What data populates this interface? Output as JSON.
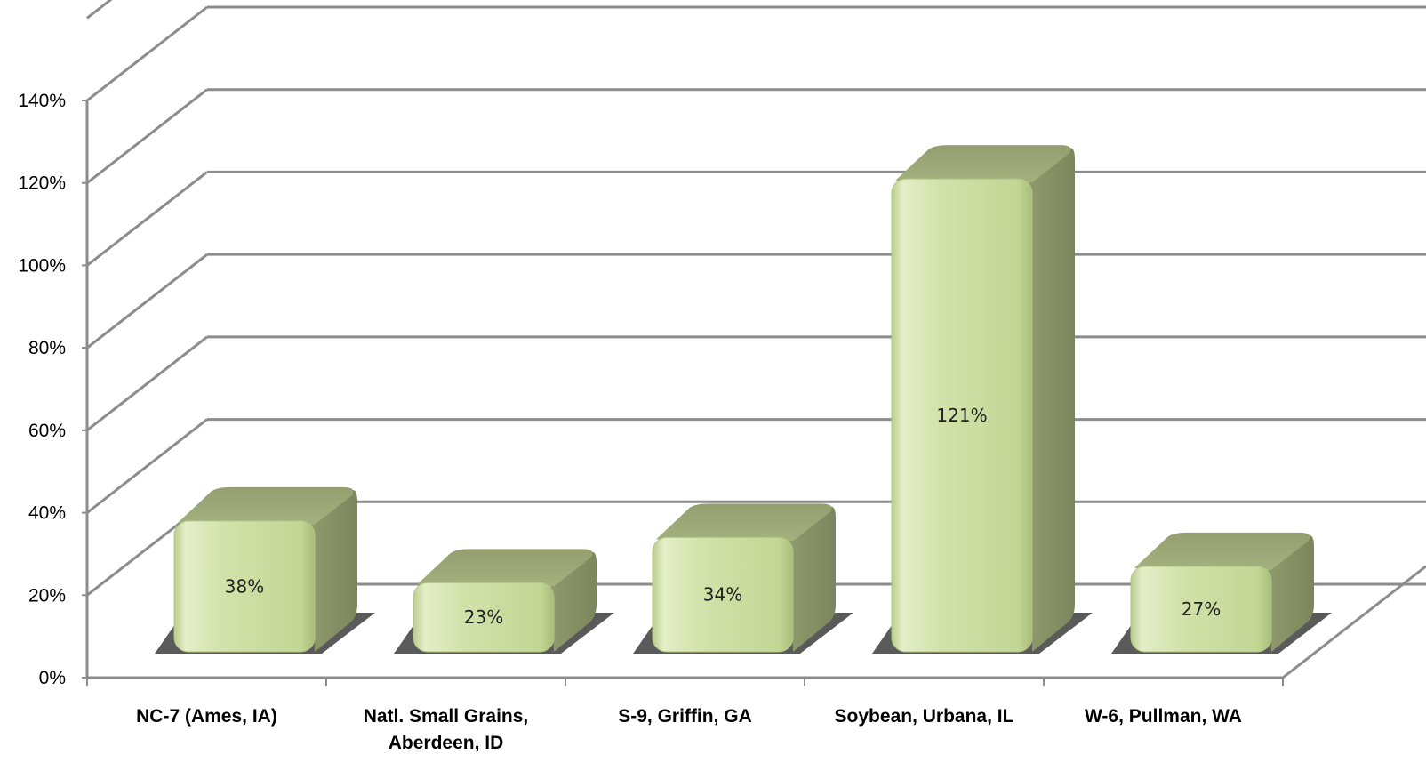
{
  "chart_data": {
    "type": "bar",
    "style": "3d-column",
    "categories": [
      [
        "NC-7 (Ames, IA)"
      ],
      [
        "Natl. Small Grains,",
        "Aberdeen, ID"
      ],
      [
        "S-9, Griffin, GA"
      ],
      [
        "Soybean, Urbana, IL"
      ],
      [
        "W-6, Pullman, WA"
      ]
    ],
    "values": [
      38,
      23,
      34,
      121,
      27
    ],
    "data_labels": [
      "38%",
      "23%",
      "34%",
      "121%",
      "27%"
    ],
    "title": "",
    "xlabel": "",
    "ylabel": "",
    "ylim": [
      0,
      140
    ],
    "yticks": [
      0,
      20,
      40,
      60,
      80,
      100,
      120,
      140
    ],
    "ytick_labels": [
      "0%",
      "20%",
      "40%",
      "60%",
      "80%",
      "100%",
      "120%",
      "140%"
    ],
    "grid": true,
    "legend": "none",
    "colors": {
      "bar_front": "#c5d89a",
      "bar_top": "#9ca878",
      "bar_side": "#858f65",
      "shadow": "#5a5a5a",
      "grid": "#8c8c8c"
    }
  }
}
